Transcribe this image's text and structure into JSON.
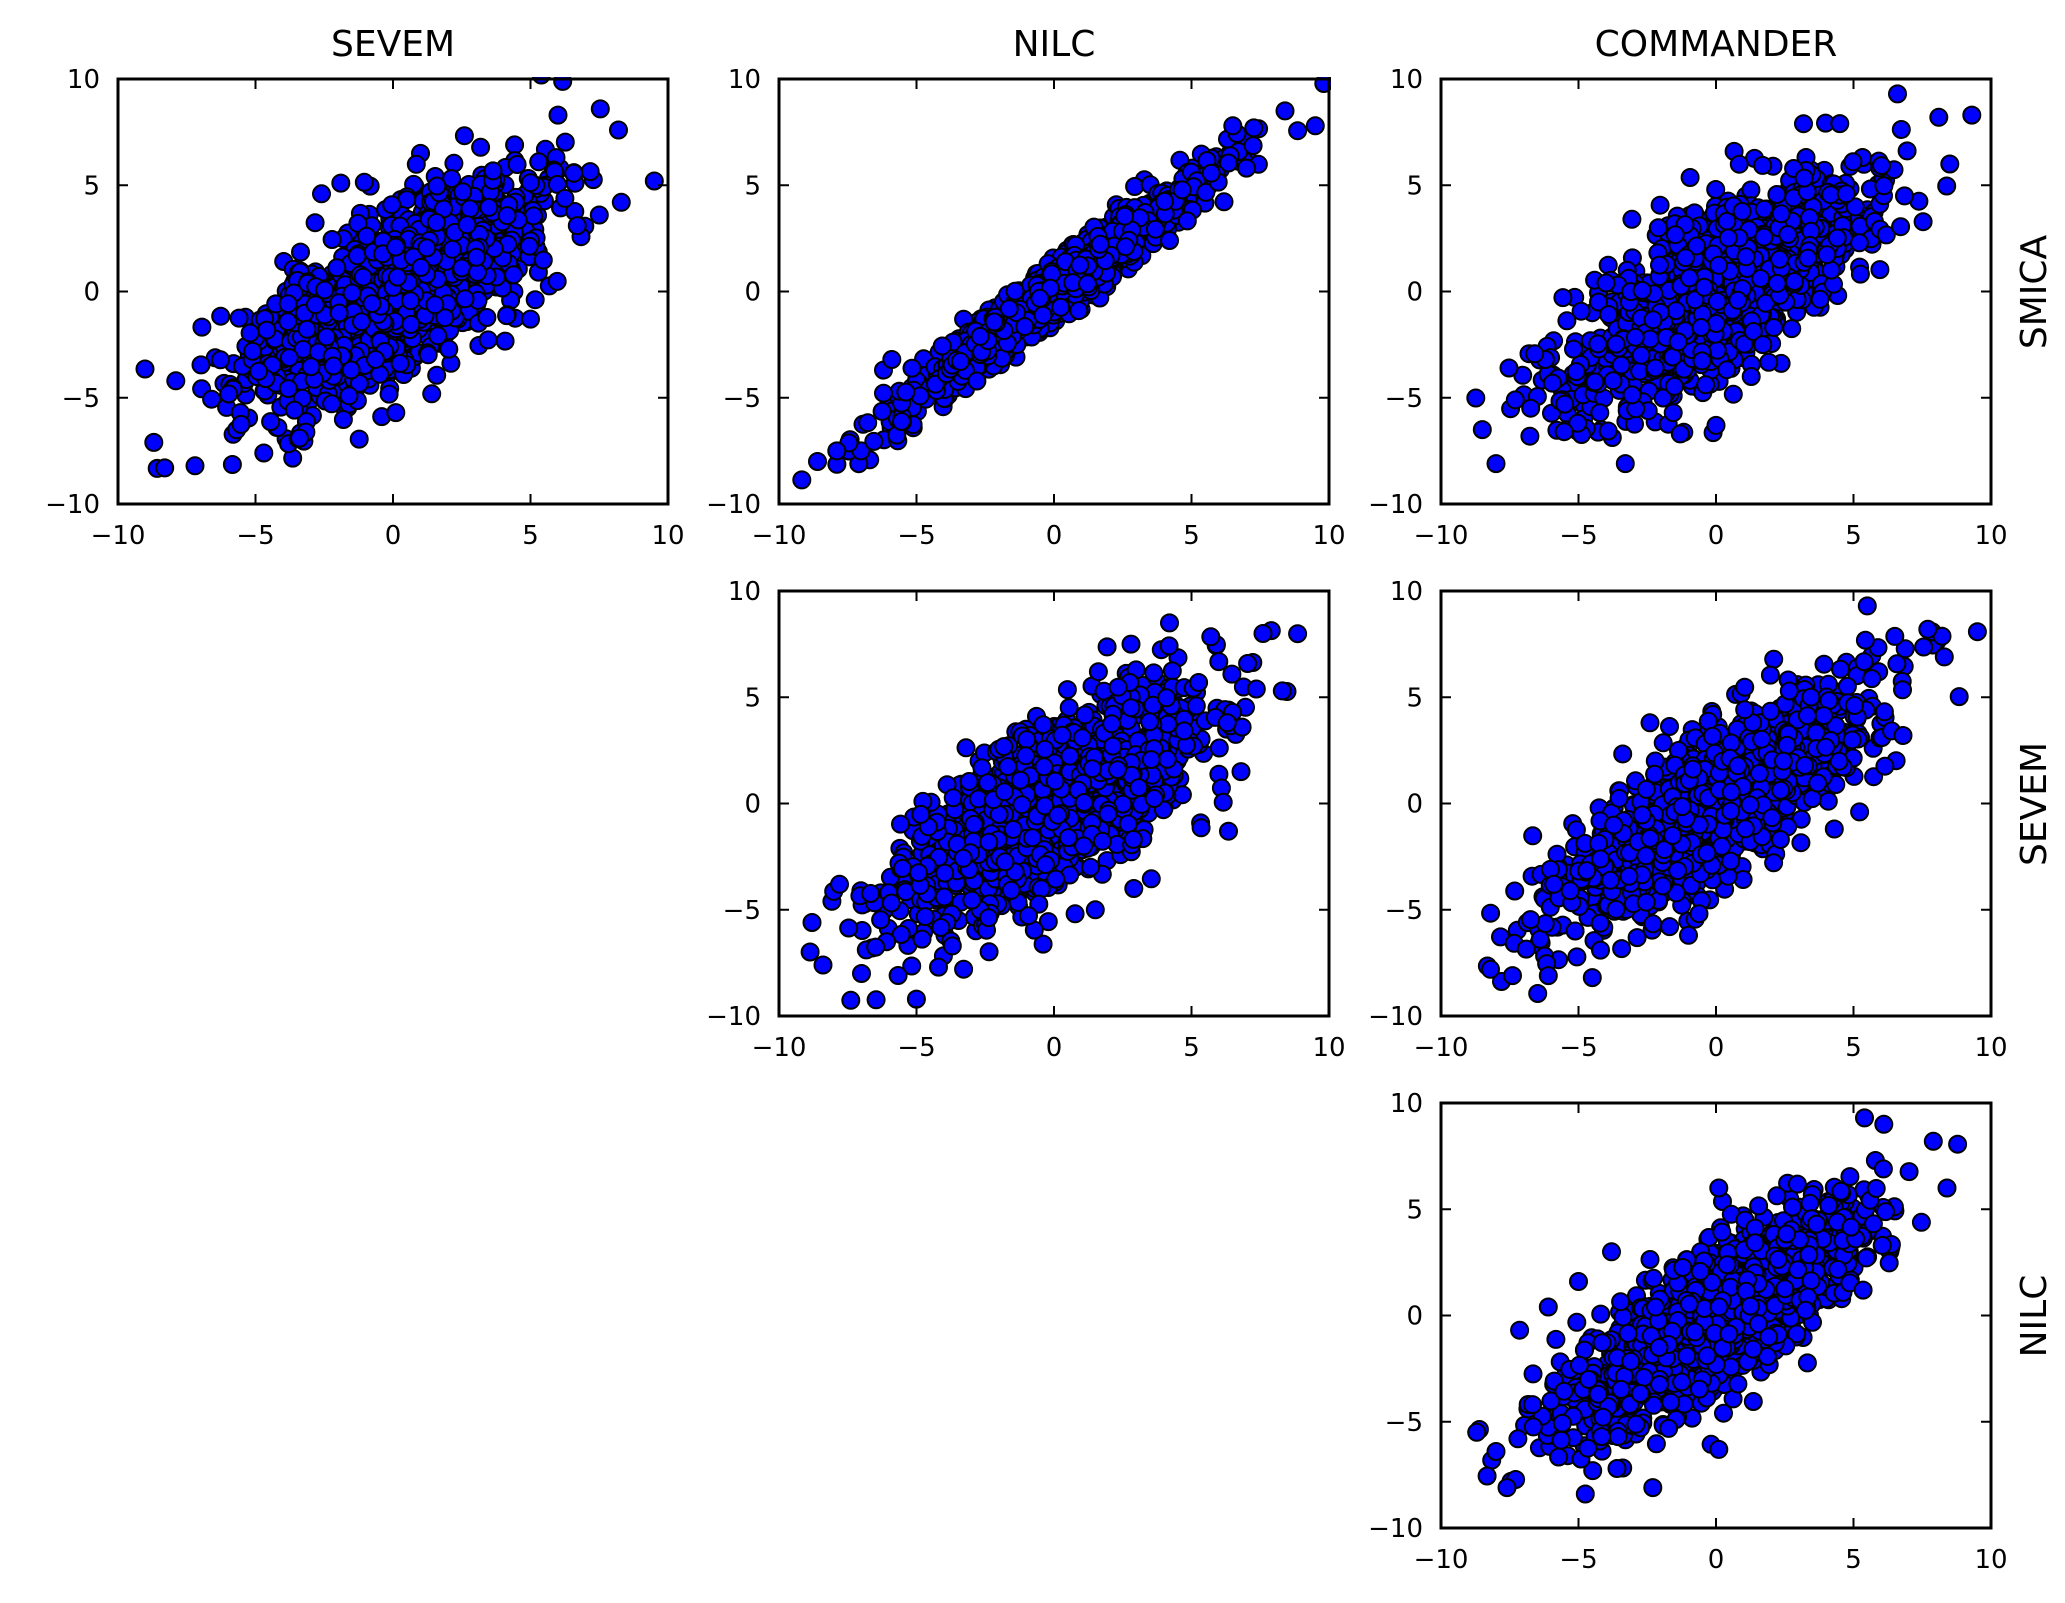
{
  "column_titles": [
    "SEVEM",
    "NILC",
    "COMMANDER"
  ],
  "row_labels": [
    "SMICA",
    "SEVEM",
    "NILC"
  ],
  "colors": {
    "marker_fill": "#0000ff",
    "marker_edge": "#000000",
    "axes": "#000000"
  },
  "chart_data": [
    {
      "type": "scatter",
      "panel": "SMICA-SEVEM",
      "column_title": "SEVEM",
      "row_label": "SMICA",
      "xlim": [
        -10,
        10
      ],
      "ylim": [
        -10,
        10
      ],
      "xticks": [
        -10,
        -5,
        0,
        5,
        10
      ],
      "yticks": [
        -10,
        -5,
        0,
        5,
        10
      ],
      "xtick_labels": [
        "−10",
        "−5",
        "0",
        "5",
        "10"
      ],
      "ytick_labels": [
        "−10",
        "−5",
        "0",
        "5",
        "10"
      ],
      "grid": false,
      "correlation": 0.7,
      "n_points": 1500,
      "seed": 11,
      "sample_points": [
        [
          9.5,
          5.2
        ],
        [
          8.2,
          7.6
        ],
        [
          8.3,
          4.2
        ],
        [
          6.0,
          8.3
        ],
        [
          -8.3,
          -8.3
        ],
        [
          -8.7,
          -7.1
        ],
        [
          -7.2,
          -8.2
        ],
        [
          -7.9,
          -4.2
        ],
        [
          -4.7,
          -7.6
        ],
        [
          -3.4,
          -6.9
        ],
        [
          -2.6,
          4.6
        ],
        [
          -1.9,
          5.1
        ],
        [
          6.7,
          3.1
        ],
        [
          7.5,
          3.6
        ],
        [
          0.1,
          -5.7
        ],
        [
          5.0,
          -1.3
        ]
      ]
    },
    {
      "type": "scatter",
      "panel": "SMICA-NILC",
      "column_title": "NILC",
      "row_label": "SMICA",
      "xlim": [
        -10,
        10
      ],
      "ylim": [
        -10,
        10
      ],
      "xticks": [
        -10,
        -5,
        0,
        5,
        10
      ],
      "yticks": [
        -10,
        -5,
        0,
        5,
        10
      ],
      "xtick_labels": [
        "−10",
        "−5",
        "0",
        "5",
        "10"
      ],
      "ytick_labels": [
        "−10",
        "−5",
        "0",
        "5",
        "10"
      ],
      "grid": false,
      "correlation": 0.97,
      "n_points": 1500,
      "seed": 23,
      "sample_points": [
        [
          9.5,
          7.8
        ],
        [
          8.4,
          8.5
        ],
        [
          -8.6,
          -8.0
        ],
        [
          -7.9,
          -7.5
        ],
        [
          -6.2,
          -3.7
        ],
        [
          6.5,
          7.8
        ],
        [
          -5.9,
          -3.2
        ],
        [
          4.2,
          2.4
        ],
        [
          0.9,
          -0.9
        ]
      ]
    },
    {
      "type": "scatter",
      "panel": "SMICA-COMMANDER",
      "column_title": "COMMANDER",
      "row_label": "SMICA",
      "xlim": [
        -10,
        10
      ],
      "ylim": [
        -10,
        10
      ],
      "xticks": [
        -10,
        -5,
        0,
        5,
        10
      ],
      "yticks": [
        -10,
        -5,
        0,
        5,
        10
      ],
      "xtick_labels": [
        "−10",
        "−5",
        "0",
        "5",
        "10"
      ],
      "ytick_labels": [
        "−10",
        "−5",
        "0",
        "5",
        "10"
      ],
      "grid": false,
      "correlation": 0.72,
      "n_points": 1500,
      "seed": 37,
      "sample_points": [
        [
          9.3,
          8.3
        ],
        [
          6.6,
          9.3
        ],
        [
          8.1,
          8.2
        ],
        [
          -8.0,
          -8.1
        ],
        [
          -8.5,
          -6.5
        ],
        [
          -3.3,
          -8.1
        ],
        [
          -4.0,
          0.4
        ],
        [
          -2.1,
          3.0
        ],
        [
          0.0,
          -6.3
        ],
        [
          8.5,
          6.0
        ],
        [
          4.5,
          7.9
        ],
        [
          -7.3,
          -5.1
        ],
        [
          1.7,
          -2.5
        ],
        [
          -1.3,
          -6.7
        ]
      ]
    },
    {
      "type": "scatter",
      "panel": "SEVEM-NILC",
      "column_title": "NILC",
      "row_label": "SEVEM",
      "xlim": [
        -10,
        10
      ],
      "ylim": [
        -10,
        10
      ],
      "xticks": [
        -10,
        -5,
        0,
        5,
        10
      ],
      "yticks": [
        -10,
        -5,
        0,
        5,
        10
      ],
      "xtick_labels": [
        "−10",
        "−5",
        "0",
        "5",
        "10"
      ],
      "ytick_labels": [
        "−10",
        "−5",
        "0",
        "5",
        "10"
      ],
      "grid": false,
      "correlation": 0.7,
      "n_points": 1500,
      "seed": 53,
      "sample_points": [
        [
          8.3,
          5.3
        ],
        [
          7.6,
          8.0
        ],
        [
          4.2,
          8.5
        ],
        [
          -8.4,
          -7.6
        ],
        [
          -7.8,
          -3.8
        ],
        [
          -7.0,
          -8.0
        ],
        [
          -4.2,
          -7.7
        ],
        [
          2.8,
          7.5
        ],
        [
          6.3,
          3.8
        ],
        [
          -3.7,
          -6.7
        ],
        [
          1.5,
          -5.0
        ],
        [
          2.9,
          -4.0
        ],
        [
          6.8,
          1.5
        ]
      ]
    },
    {
      "type": "scatter",
      "panel": "SEVEM-COMMANDER",
      "column_title": "COMMANDER",
      "row_label": "SEVEM",
      "xlim": [
        -10,
        10
      ],
      "ylim": [
        -10,
        10
      ],
      "xticks": [
        -10,
        -5,
        0,
        5,
        10
      ],
      "yticks": [
        -10,
        -5,
        0,
        5,
        10
      ],
      "xtick_labels": [
        "−10",
        "−5",
        "0",
        "5",
        "10"
      ],
      "ytick_labels": [
        "−10",
        "−5",
        "0",
        "5",
        "10"
      ],
      "grid": false,
      "correlation": 0.8,
      "n_points": 1500,
      "seed": 71,
      "sample_points": [
        [
          5.5,
          9.3
        ],
        [
          7.7,
          8.2
        ],
        [
          8.3,
          6.9
        ],
        [
          -8.2,
          -7.8
        ],
        [
          -6.1,
          -8.1
        ],
        [
          -7.4,
          -8.1
        ],
        [
          -4.2,
          -6.9
        ],
        [
          -2.4,
          3.8
        ],
        [
          -1.0,
          -6.2
        ],
        [
          6.8,
          3.2
        ],
        [
          4.3,
          -1.2
        ],
        [
          -5.9,
          -3.8
        ]
      ]
    },
    {
      "type": "scatter",
      "panel": "NILC-COMMANDER",
      "column_title": "COMMANDER",
      "row_label": "NILC",
      "xlim": [
        -10,
        10
      ],
      "ylim": [
        -10,
        10
      ],
      "xticks": [
        -10,
        -5,
        0,
        5,
        10
      ],
      "yticks": [
        -10,
        -5,
        0,
        5,
        10
      ],
      "xtick_labels": [
        "−10",
        "−5",
        "0",
        "5",
        "10"
      ],
      "ytick_labels": [
        "−10",
        "−5",
        "0",
        "5",
        "10"
      ],
      "grid": false,
      "correlation": 0.78,
      "n_points": 1500,
      "seed": 89,
      "sample_points": [
        [
          5.4,
          9.3
        ],
        [
          6.1,
          9.0
        ],
        [
          8.4,
          6.0
        ],
        [
          7.9,
          8.2
        ],
        [
          -7.6,
          -8.1
        ],
        [
          -8.0,
          -6.4
        ],
        [
          -2.3,
          -8.1
        ],
        [
          -5.0,
          1.6
        ],
        [
          -3.8,
          3.0
        ],
        [
          -6.1,
          0.4
        ],
        [
          0.1,
          6.0
        ],
        [
          0.1,
          -6.3
        ],
        [
          -3.6,
          -7.2
        ]
      ]
    }
  ]
}
